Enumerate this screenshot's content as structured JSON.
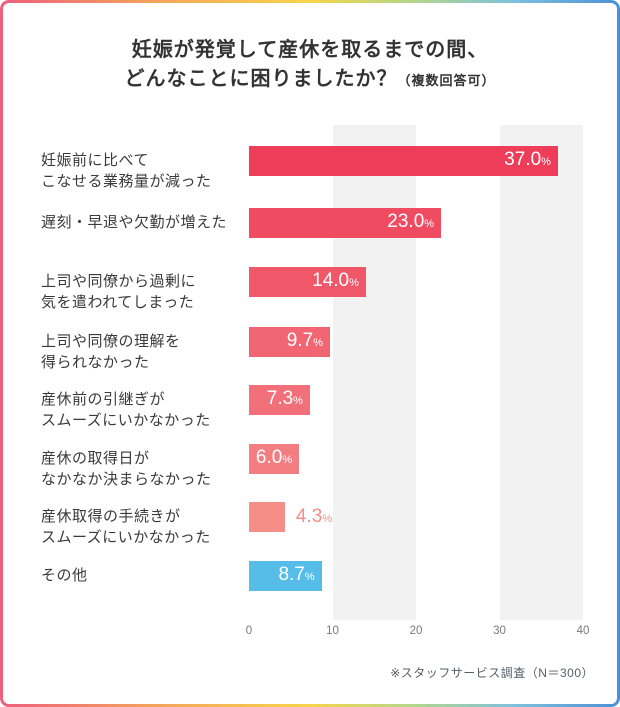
{
  "title": {
    "line1": "妊娠が発覚して産休を取るまでの間、",
    "line2_main": "どんなことに困りましたか？",
    "line2_note": "（複数回答可）"
  },
  "chart_data": {
    "type": "bar",
    "orientation": "horizontal",
    "categories": [
      "妊娠前に比べて\nこなせる業務量が減った",
      "遅刻・早退や欠勤が増えた",
      "上司や同僚から過剰に\n気を遣われてしまった",
      "上司や同僚の理解を\n得られなかった",
      "産休前の引継ぎが\nスムーズにいかなかった",
      "産休の取得日が\nなかなか決まらなかった",
      "産休取得の手続きが\nスムーズにいかなかった",
      "その他"
    ],
    "values": [
      37.0,
      23.0,
      14.0,
      9.7,
      7.3,
      6.0,
      4.3,
      8.7
    ],
    "value_labels": [
      "37.0",
      "23.0",
      "14.0",
      "9.7",
      "7.3",
      "6.0",
      "4.3",
      "8.7"
    ],
    "unit": "%",
    "bar_colors": [
      "#ee3d59",
      "#ef4c61",
      "#f05768",
      "#f16672",
      "#f2707a",
      "#f37e81",
      "#f48e87",
      "#55bde8"
    ],
    "value_label_inside": [
      true,
      true,
      true,
      true,
      true,
      true,
      false,
      true
    ],
    "xlim": [
      0,
      40
    ],
    "x_ticks": [
      0,
      10,
      20,
      30,
      40
    ],
    "grid_bands": [
      [
        10,
        20
      ],
      [
        30,
        40
      ]
    ],
    "grid_band_color": "#f2f2f3",
    "value_text_color_inside": "#ffffff"
  },
  "footnote": "※スタッフサービス調査（N＝300）"
}
